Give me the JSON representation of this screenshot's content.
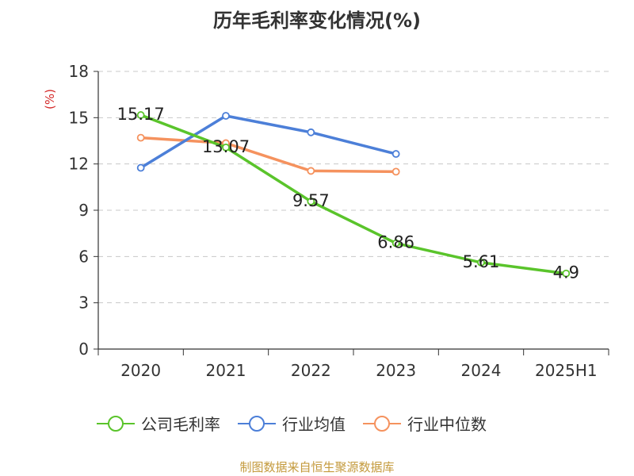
{
  "title": "历年毛利率变化情况(%)",
  "source": "制图数据来自恒生聚源数据库",
  "chart_data": {
    "type": "line",
    "title": "历年毛利率变化情况(%)",
    "ylabel": "(%)",
    "categories": [
      "2020",
      "2021",
      "2022",
      "2023",
      "2024",
      "2025H1"
    ],
    "ylim": [
      0,
      18
    ],
    "yticks": [
      0,
      3,
      6,
      9,
      12,
      15,
      18
    ],
    "grid": true,
    "legend_position": "bottom",
    "series": [
      {
        "name": "公司毛利率",
        "color": "#5ac42b",
        "values": [
          15.17,
          13.07,
          9.57,
          6.86,
          5.61,
          4.9
        ],
        "labels": [
          "15.17",
          "13.07",
          "9.57",
          "6.86",
          "5.61",
          "4.9"
        ]
      },
      {
        "name": "行业均值",
        "color": "#4c7fd8",
        "values": [
          11.75,
          15.12,
          14.05,
          12.65,
          null,
          null
        ]
      },
      {
        "name": "行业中位数",
        "color": "#f5925e",
        "values": [
          13.7,
          13.35,
          11.55,
          11.5,
          null,
          null
        ]
      }
    ]
  }
}
